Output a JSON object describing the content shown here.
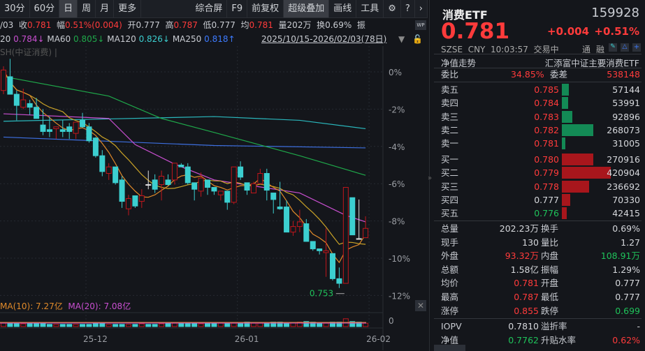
{
  "toolbar": {
    "left": [
      "30分",
      "60分",
      "日",
      "周",
      "月",
      "更多"
    ],
    "selected": "日",
    "right": [
      "综合屏",
      "F9",
      "前复权",
      "超级叠加",
      "画线",
      "工具"
    ],
    "icons": [
      "gear-icon",
      "help-icon",
      "chevron-right-icon"
    ]
  },
  "infobar": {
    "date": "/03",
    "close_label": "收",
    "close": "0.781",
    "amp_label": "幅",
    "amp": "0.51%(0.004)",
    "open_label": "开",
    "open": "0.777",
    "high_label": "高",
    "high": "0.787",
    "low_label": "低",
    "low": "0.777",
    "avg_label": "均",
    "avg": "0.781",
    "vol_label": "量",
    "vol": "202万",
    "turn_label": "换",
    "turn": "0.69%",
    "zhen_label": "振"
  },
  "mabar": {
    "ma20_label": "20",
    "ma20": "0.784↓",
    "ma60_label": "MA60",
    "ma60": "0.805↓",
    "ma120_label": "MA120",
    "ma120": "0.826↓",
    "ma250_label": "MA250",
    "ma250": "0.818↑",
    "range": "2025/10/15-2026/02/03(78日)"
  },
  "overlay_label": "SH(中证消费) |",
  "colors": {
    "up": "#ff3b3b",
    "down": "#3ccfd0",
    "ma5": "#d6d8dc",
    "ma10": "#e08a2a",
    "ma20": "#c94fd0",
    "ma60": "#1fa84a",
    "ma120": "#2ab8bd",
    "ma250": "#3d6fe0",
    "bg": "#14161b"
  },
  "chart_data": {
    "type": "candlestick",
    "y_unit": "% change",
    "yticks": [
      "0%",
      "-2%",
      "-4%",
      "-6%",
      "-8%",
      "-10%",
      "-12%"
    ],
    "ytick_values": [
      0,
      -2,
      -4,
      -6,
      -8,
      -10,
      -12
    ],
    "xticks": [
      "25-12",
      "26-01",
      "26-02"
    ],
    "xtick_index": [
      12,
      35,
      55
    ],
    "low_annotation": {
      "label": "0.753",
      "index": 52
    },
    "candles": [
      [
        -1.0,
        0.1,
        0.3,
        -1.2
      ],
      [
        -0.26,
        -1.2,
        0.7,
        -1.2
      ],
      [
        -1.2,
        -1.8,
        -1.0,
        -2.6
      ],
      [
        -1.9,
        -1.5,
        -0.9,
        -2.0
      ],
      [
        -1.7,
        -1.9,
        -1.5,
        -2.3
      ],
      [
        -1.9,
        -2.5,
        -1.4,
        -2.5
      ],
      [
        -2.85,
        -3.2,
        -2.0,
        -3.4
      ],
      [
        -3.1,
        -3.2,
        -2.4,
        -3.5
      ],
      [
        -3.05,
        -2.95,
        -2.95,
        -3.6
      ],
      [
        -3.1,
        -3.2,
        -2.6,
        -3.5
      ],
      [
        -2.95,
        -3.2,
        -2.75,
        -3.6
      ],
      [
        -3.3,
        -2.7,
        -2.7,
        -3.6
      ],
      [
        -2.6,
        -2.95,
        -2.2,
        -3.0
      ],
      [
        -2.95,
        -3.7,
        -2.75,
        -3.8
      ],
      [
        -3.55,
        -4.5,
        -3.5,
        -4.6
      ],
      [
        -4.5,
        -5.35,
        -4.2,
        -5.6
      ],
      [
        -5.45,
        -5.1,
        -4.9,
        -5.8
      ],
      [
        -5.1,
        -5.95,
        -5.1,
        -6.05
      ],
      [
        -5.8,
        -6.95,
        -5.6,
        -7.3
      ],
      [
        -7.35,
        -6.8,
        -6.6,
        -7.7
      ],
      [
        -6.65,
        -7.2,
        -6.65,
        -7.3
      ],
      [
        -6.95,
        -6.65,
        -6.3,
        -7.3
      ],
      [
        -6.05,
        -6.05,
        -5.3,
        -6.3
      ],
      [
        -5.8,
        -6.3,
        -5.5,
        -6.5
      ],
      [
        -6.05,
        -5.6,
        -5.3,
        -6.9
      ],
      [
        -5.8,
        -6.05,
        -5.5,
        -6.1
      ],
      [
        -5.8,
        -4.9,
        -4.9,
        -6.05
      ],
      [
        -5.0,
        -5.1,
        -4.9,
        -5.1
      ],
      [
        -5.1,
        -5.95,
        -4.9,
        -6.05
      ],
      [
        -5.95,
        -6.3,
        -5.95,
        -6.9
      ],
      [
        -6.4,
        -5.7,
        -5.4,
        -6.7
      ],
      [
        -5.8,
        -6.2,
        -5.8,
        -6.6
      ],
      [
        -6.2,
        -6.4,
        -6.2,
        -6.6
      ],
      [
        -6.6,
        -6.4,
        -6.4,
        -6.9
      ],
      [
        -6.4,
        -7.0,
        -6.4,
        -7.4
      ],
      [
        -7.0,
        -5.1,
        -5.1,
        -7.1
      ],
      [
        -5.1,
        -5.65,
        -4.8,
        -5.8
      ],
      [
        -5.95,
        -6.35,
        -5.95,
        -6.6
      ],
      [
        -6.5,
        -6.0,
        -5.9,
        -6.5
      ],
      [
        -6.0,
        -5.45,
        -5.2,
        -6.0
      ],
      [
        -5.45,
        -6.35,
        -5.2,
        -6.9
      ],
      [
        -6.5,
        -6.85,
        -6.5,
        -7.6
      ],
      [
        -7.25,
        -7.35,
        -5.9,
        -7.4
      ],
      [
        -7.25,
        -8.6,
        -6.9,
        -8.6
      ],
      [
        -8.6,
        -8.3,
        -8.0,
        -8.8
      ],
      [
        -8.3,
        -8.05,
        -7.4,
        -8.6
      ],
      [
        -8.15,
        -9.1,
        -7.9,
        -9.1
      ],
      [
        -9.1,
        -9.5,
        -9.1,
        -9.6
      ],
      [
        -9.5,
        -9.6,
        -9.5,
        -9.8
      ],
      [
        -9.7,
        -9.6,
        -8.4,
        -11.0
      ],
      [
        -9.75,
        -11.1,
        -9.75,
        -11.2
      ],
      [
        -11.1,
        -11.35,
        -10.5,
        -11.6
      ],
      [
        -11.35,
        -6.2,
        -6.2,
        -11.35
      ],
      [
        -6.75,
        -8.75,
        -6.75,
        -8.75
      ],
      [
        -8.95,
        -8.95,
        -6.85,
        -9.0
      ],
      [
        -8.9,
        -8.4,
        -7.75,
        -8.9
      ]
    ],
    "ma_lines": {
      "ma20": [
        [
          0,
          -2.25
        ],
        [
          16,
          -2.5
        ],
        [
          20,
          -3.9
        ],
        [
          26,
          -4.95
        ],
        [
          32,
          -5.8
        ],
        [
          45,
          -6.5
        ],
        [
          52,
          -7.7
        ],
        [
          55,
          -8.05
        ]
      ],
      "ma60": [
        [
          0,
          -0.25
        ],
        [
          16,
          -1.3
        ],
        [
          24,
          -2.5
        ],
        [
          32,
          -3.25
        ],
        [
          45,
          -4.5
        ],
        [
          55,
          -5.55
        ]
      ],
      "ma120": [
        [
          0,
          -2.65
        ],
        [
          32,
          -2.4
        ],
        [
          45,
          -2.6
        ],
        [
          55,
          -3.05
        ]
      ],
      "ma250": [
        [
          0,
          -3.5
        ],
        [
          32,
          -3.95
        ],
        [
          55,
          -4.08
        ]
      ]
    },
    "volume": {
      "ma10_label": "MA(10): 7.27亿",
      "ma20_label": "MA(20): 7.08亿",
      "ytick": "0",
      "values": [
        6,
        6,
        5,
        5,
        5,
        5,
        5,
        4,
        4,
        4,
        4,
        4,
        4,
        4,
        5,
        5,
        4,
        4,
        4,
        4,
        4,
        5,
        4,
        4,
        5,
        5,
        6,
        7,
        7,
        5,
        5,
        5,
        5,
        6,
        6,
        6,
        7,
        8,
        6,
        6,
        7,
        8,
        8,
        7,
        7,
        8,
        9,
        8,
        7,
        6,
        8,
        8,
        14,
        9,
        8,
        6
      ]
    }
  },
  "quote": {
    "name": "消费ETF",
    "code": "159928",
    "price": "0.781",
    "change": "+0.004",
    "pct": "+0.51%",
    "exchange": "SZSE",
    "currency": "CNY",
    "time": "10:03:57",
    "status": "交易中",
    "tong": "通",
    "rong": "融",
    "nav_trend": "净值走势",
    "fullname": "汇添富中证主要消费ETF"
  },
  "orderbook": {
    "ratio_label": "委比",
    "ratio": "34.85%",
    "diff_label": "委差",
    "diff": "538148",
    "asks": [
      {
        "label": "卖五",
        "price": "0.785",
        "vol": "57144",
        "n": 57144
      },
      {
        "label": "卖四",
        "price": "0.784",
        "vol": "53991",
        "n": 53991
      },
      {
        "label": "卖三",
        "price": "0.783",
        "vol": "92896",
        "n": 92896
      },
      {
        "label": "卖二",
        "price": "0.782",
        "vol": "268073",
        "n": 268073
      },
      {
        "label": "卖一",
        "price": "0.781",
        "vol": "31005",
        "n": 31005
      }
    ],
    "bids": [
      {
        "label": "买一",
        "price": "0.780",
        "vol": "270916",
        "n": 270916,
        "c": "r"
      },
      {
        "label": "买二",
        "price": "0.779",
        "vol": "420904",
        "n": 420904,
        "c": "r"
      },
      {
        "label": "买三",
        "price": "0.778",
        "vol": "236692",
        "n": 236692,
        "c": "r"
      },
      {
        "label": "买四",
        "price": "0.777",
        "vol": "70330",
        "n": 70330,
        "c": "w"
      },
      {
        "label": "买五",
        "price": "0.776",
        "vol": "42415",
        "n": 42415,
        "c": "g"
      }
    ]
  },
  "stats": [
    {
      "l1": "总量",
      "v1": "202.23万",
      "c1": "w",
      "l2": "换手",
      "v2": "0.69%",
      "c2": "w"
    },
    {
      "l1": "现手",
      "v1": "130",
      "c1": "w",
      "l2": "量比",
      "v2": "1.27",
      "c2": "w"
    },
    {
      "l1": "外盘",
      "v1": "93.32万",
      "c1": "r",
      "l2": "内盘",
      "v2": "108.91万",
      "c2": "g"
    },
    {
      "l1": "总额",
      "v1": "1.58亿",
      "c1": "w",
      "l2": "振幅",
      "v2": "1.29%",
      "c2": "w"
    },
    {
      "l1": "均价",
      "v1": "0.781",
      "c1": "r",
      "l2": "开盘",
      "v2": "0.777",
      "c2": "w"
    },
    {
      "l1": "最高",
      "v1": "0.787",
      "c1": "r",
      "l2": "最低",
      "v2": "0.777",
      "c2": "w"
    },
    {
      "l1": "涨停",
      "v1": "0.855",
      "c1": "r",
      "l2": "跌停",
      "v2": "0.699",
      "c2": "g"
    }
  ],
  "etf": [
    {
      "l1": "IOPV",
      "v1": "0.7810",
      "c1": "w",
      "l2": "溢折率",
      "v2": "-",
      "c2": "w"
    },
    {
      "l1": "净值",
      "v1": "0.7762",
      "c1": "g",
      "l2": "升贴水率",
      "v2": "0.62%",
      "c2": "r"
    }
  ]
}
